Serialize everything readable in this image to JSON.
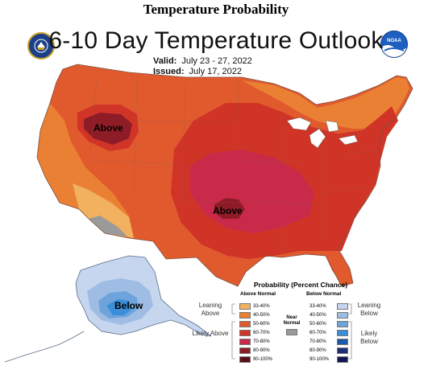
{
  "page_heading": "Temperature Probability",
  "map": {
    "title": "6-10 Day Temperature Outlook",
    "valid_label": "Valid:",
    "valid_value": "July 23 - 27, 2022",
    "issued_label": "Issued:",
    "issued_value": "July 17, 2022",
    "region_labels": {
      "northwest": "Above",
      "central": "Above",
      "alaska": "Below"
    }
  },
  "logos": {
    "left": "doc-seal-icon",
    "right": "noaa-logo-icon",
    "right_text": "NOAA"
  },
  "legend": {
    "title": "Probability (Percent Chance)",
    "above_header": "Above Normal",
    "below_header": "Below Normal",
    "leaning_above": "Leaning Above",
    "likely_above": "Likely Above",
    "leaning_below": "Leaning Below",
    "likely_below": "Likely Below",
    "near_normal": "Near Normal",
    "near_color": "#9a9a9a",
    "above_bins": [
      {
        "label": "33-40%",
        "color": "#f2b15e"
      },
      {
        "label": "40-50%",
        "color": "#ea8034"
      },
      {
        "label": "50-60%",
        "color": "#e15a2e"
      },
      {
        "label": "60-70%",
        "color": "#d03427"
      },
      {
        "label": "70-80%",
        "color": "#c92a4a"
      },
      {
        "label": "80-90%",
        "color": "#8e1c27"
      },
      {
        "label": "90-100%",
        "color": "#5a0e18"
      }
    ],
    "below_bins": [
      {
        "label": "33-40%",
        "color": "#c6d6ee"
      },
      {
        "label": "40-50%",
        "color": "#9fbde4"
      },
      {
        "label": "50-60%",
        "color": "#6ea4db"
      },
      {
        "label": "60-70%",
        "color": "#3b8fd8"
      },
      {
        "label": "70-80%",
        "color": "#1c5aa9"
      },
      {
        "label": "80-90%",
        "color": "#1e2f7a"
      },
      {
        "label": "90-100%",
        "color": "#15164f"
      }
    ]
  }
}
